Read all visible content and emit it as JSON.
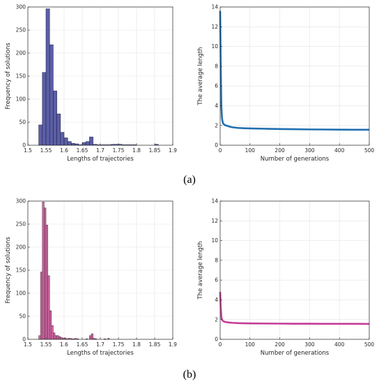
{
  "captions": {
    "a": "(a)",
    "b": "(b)"
  },
  "chart_data": [
    {
      "id": "a-hist",
      "type": "bar",
      "title": "",
      "xlabel": "Lengths of trajectories",
      "ylabel": "Frequency of solutions",
      "xlim": [
        1.5,
        1.9
      ],
      "ylim": [
        0,
        300
      ],
      "xticks": [
        "1.5",
        "1.55",
        "1.6",
        "1.65",
        "1.7",
        "1.75",
        "1.8",
        "1.85",
        "1.9"
      ],
      "yticks": [
        "0",
        "50",
        "100",
        "150",
        "200",
        "250",
        "300"
      ],
      "bin_width": 0.01,
      "bin_starts": [
        1.53,
        1.54,
        1.55,
        1.56,
        1.57,
        1.58,
        1.59,
        1.6,
        1.61,
        1.62,
        1.63,
        1.64,
        1.65,
        1.66,
        1.67,
        1.68,
        1.69,
        1.7,
        1.71,
        1.72,
        1.73,
        1.74,
        1.75,
        1.76,
        1.77,
        1.78,
        1.79,
        1.8,
        1.81,
        1.82,
        1.83,
        1.84,
        1.85
      ],
      "values": [
        44,
        158,
        296,
        218,
        118,
        68,
        28,
        16,
        8,
        4,
        3,
        1,
        6,
        8,
        18,
        2,
        1,
        1,
        1,
        1,
        2,
        2,
        2,
        1,
        1,
        1,
        1,
        0,
        0,
        0,
        0,
        0,
        2
      ],
      "grid": true,
      "color": "#5b5fa6",
      "edge": "#1a1a3a"
    },
    {
      "id": "a-line",
      "type": "line",
      "title": "",
      "xlabel": "Number of generations",
      "ylabel": "The average length",
      "xlim": [
        0,
        500
      ],
      "ylim": [
        0,
        14
      ],
      "xticks": [
        "0",
        "100",
        "200",
        "300",
        "400",
        "500"
      ],
      "yticks": [
        "0",
        "2",
        "4",
        "6",
        "8",
        "10",
        "12",
        "14"
      ],
      "x": [
        0,
        2,
        4,
        6,
        8,
        10,
        15,
        20,
        30,
        40,
        60,
        80,
        100,
        150,
        200,
        250,
        300,
        350,
        400,
        450,
        500
      ],
      "y": [
        13.6,
        8.0,
        4.0,
        2.8,
        2.4,
        2.2,
        2.05,
        2.0,
        1.9,
        1.82,
        1.75,
        1.72,
        1.7,
        1.67,
        1.64,
        1.62,
        1.6,
        1.59,
        1.58,
        1.57,
        1.57
      ],
      "grid": true,
      "color": "#1f6fb0"
    },
    {
      "id": "b-hist",
      "type": "bar",
      "title": "",
      "xlabel": "Lengths of trajectories",
      "ylabel": "Frequency of solutions",
      "xlim": [
        1.5,
        1.9
      ],
      "ylim": [
        0,
        300
      ],
      "xticks": [
        "1.5",
        "1.55",
        "1.6",
        "1.65",
        "1.7",
        "1.75",
        "1.8",
        "1.85",
        "1.9"
      ],
      "yticks": [
        "0",
        "50",
        "100",
        "150",
        "200",
        "250",
        "300"
      ],
      "bin_width": 0.005,
      "bin_starts": [
        1.53,
        1.535,
        1.54,
        1.545,
        1.55,
        1.555,
        1.56,
        1.565,
        1.57,
        1.575,
        1.58,
        1.585,
        1.59,
        1.595,
        1.6,
        1.605,
        1.61,
        1.615,
        1.62,
        1.625,
        1.63,
        1.635,
        1.64,
        1.645,
        1.65,
        1.655,
        1.66,
        1.665,
        1.67,
        1.675,
        1.68,
        1.685,
        1.69,
        1.695,
        1.7,
        1.705,
        1.71,
        1.715,
        1.72
      ],
      "values": [
        8,
        146,
        298,
        285,
        248,
        138,
        62,
        30,
        14,
        8,
        8,
        6,
        4,
        2,
        3,
        1,
        2,
        2,
        1,
        1,
        2,
        1,
        0,
        0,
        0,
        0,
        1,
        0,
        8,
        12,
        2,
        1,
        0,
        0,
        0,
        0,
        1,
        0,
        2
      ],
      "grid": true,
      "color": "#d46aa6",
      "edge": "#3a1a2a"
    },
    {
      "id": "b-line",
      "type": "line",
      "title": "",
      "xlabel": "Number of generations",
      "ylabel": "The average length",
      "xlim": [
        0,
        500
      ],
      "ylim": [
        0,
        14
      ],
      "xticks": [
        "0",
        "100",
        "200",
        "300",
        "400",
        "500"
      ],
      "yticks": [
        "0",
        "2",
        "4",
        "6",
        "8",
        "10",
        "12",
        "14"
      ],
      "x": [
        0,
        2,
        4,
        6,
        8,
        10,
        15,
        20,
        30,
        40,
        60,
        80,
        100,
        150,
        200,
        250,
        300,
        350,
        400,
        450,
        500
      ],
      "y": [
        4.8,
        3.2,
        2.3,
        2.0,
        1.9,
        1.85,
        1.78,
        1.74,
        1.7,
        1.67,
        1.64,
        1.62,
        1.61,
        1.6,
        1.59,
        1.58,
        1.58,
        1.57,
        1.57,
        1.57,
        1.56
      ],
      "grid": true,
      "color": "#c43c97"
    }
  ]
}
